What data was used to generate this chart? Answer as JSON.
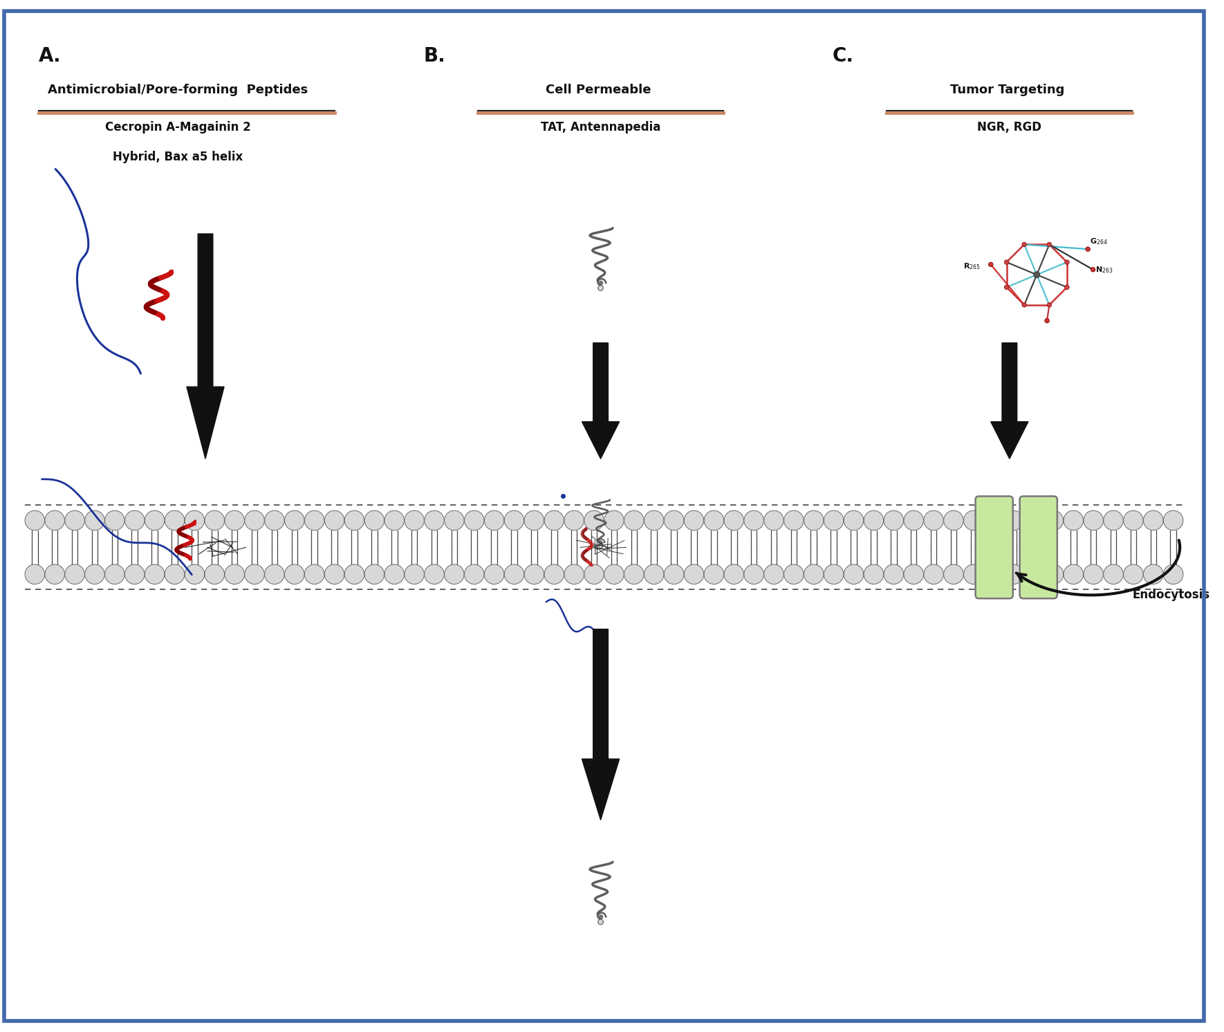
{
  "bg_color": "#ffffff",
  "border_color": "#4169aa",
  "panel_A_label": "A.",
  "panel_B_label": "B.",
  "panel_C_label": "C.",
  "title_A": "Antimicrobial/Pore-forming  Peptides",
  "subtitle_A1": "Cecropin A-Magainin 2",
  "subtitle_A2": "Hybrid, Bax a5 helix",
  "title_B": "Cell Permeable ",
  "subtitle_B": "TAT, Antennapedia",
  "title_C": "Tumor Targeting ",
  "subtitle_C": "NGR, RGD",
  "endocytosis_label": "Endocytosis",
  "sphere_color": "#d8d8d8",
  "sphere_edge": "#555555",
  "tail_color": "#444444",
  "arrow_color": "#111111",
  "channel_fill": "#c8e8a0",
  "channel_edge": "#777777",
  "dashed_color": "#444444",
  "text_color": "#111111",
  "underline_color1": "#cc8866",
  "underline_color2": "#222222",
  "blue_tail_color": "#1a3399",
  "red_helix_light": "#cc1111",
  "red_helix_dark": "#880000",
  "gray_protein_color": "#555555"
}
